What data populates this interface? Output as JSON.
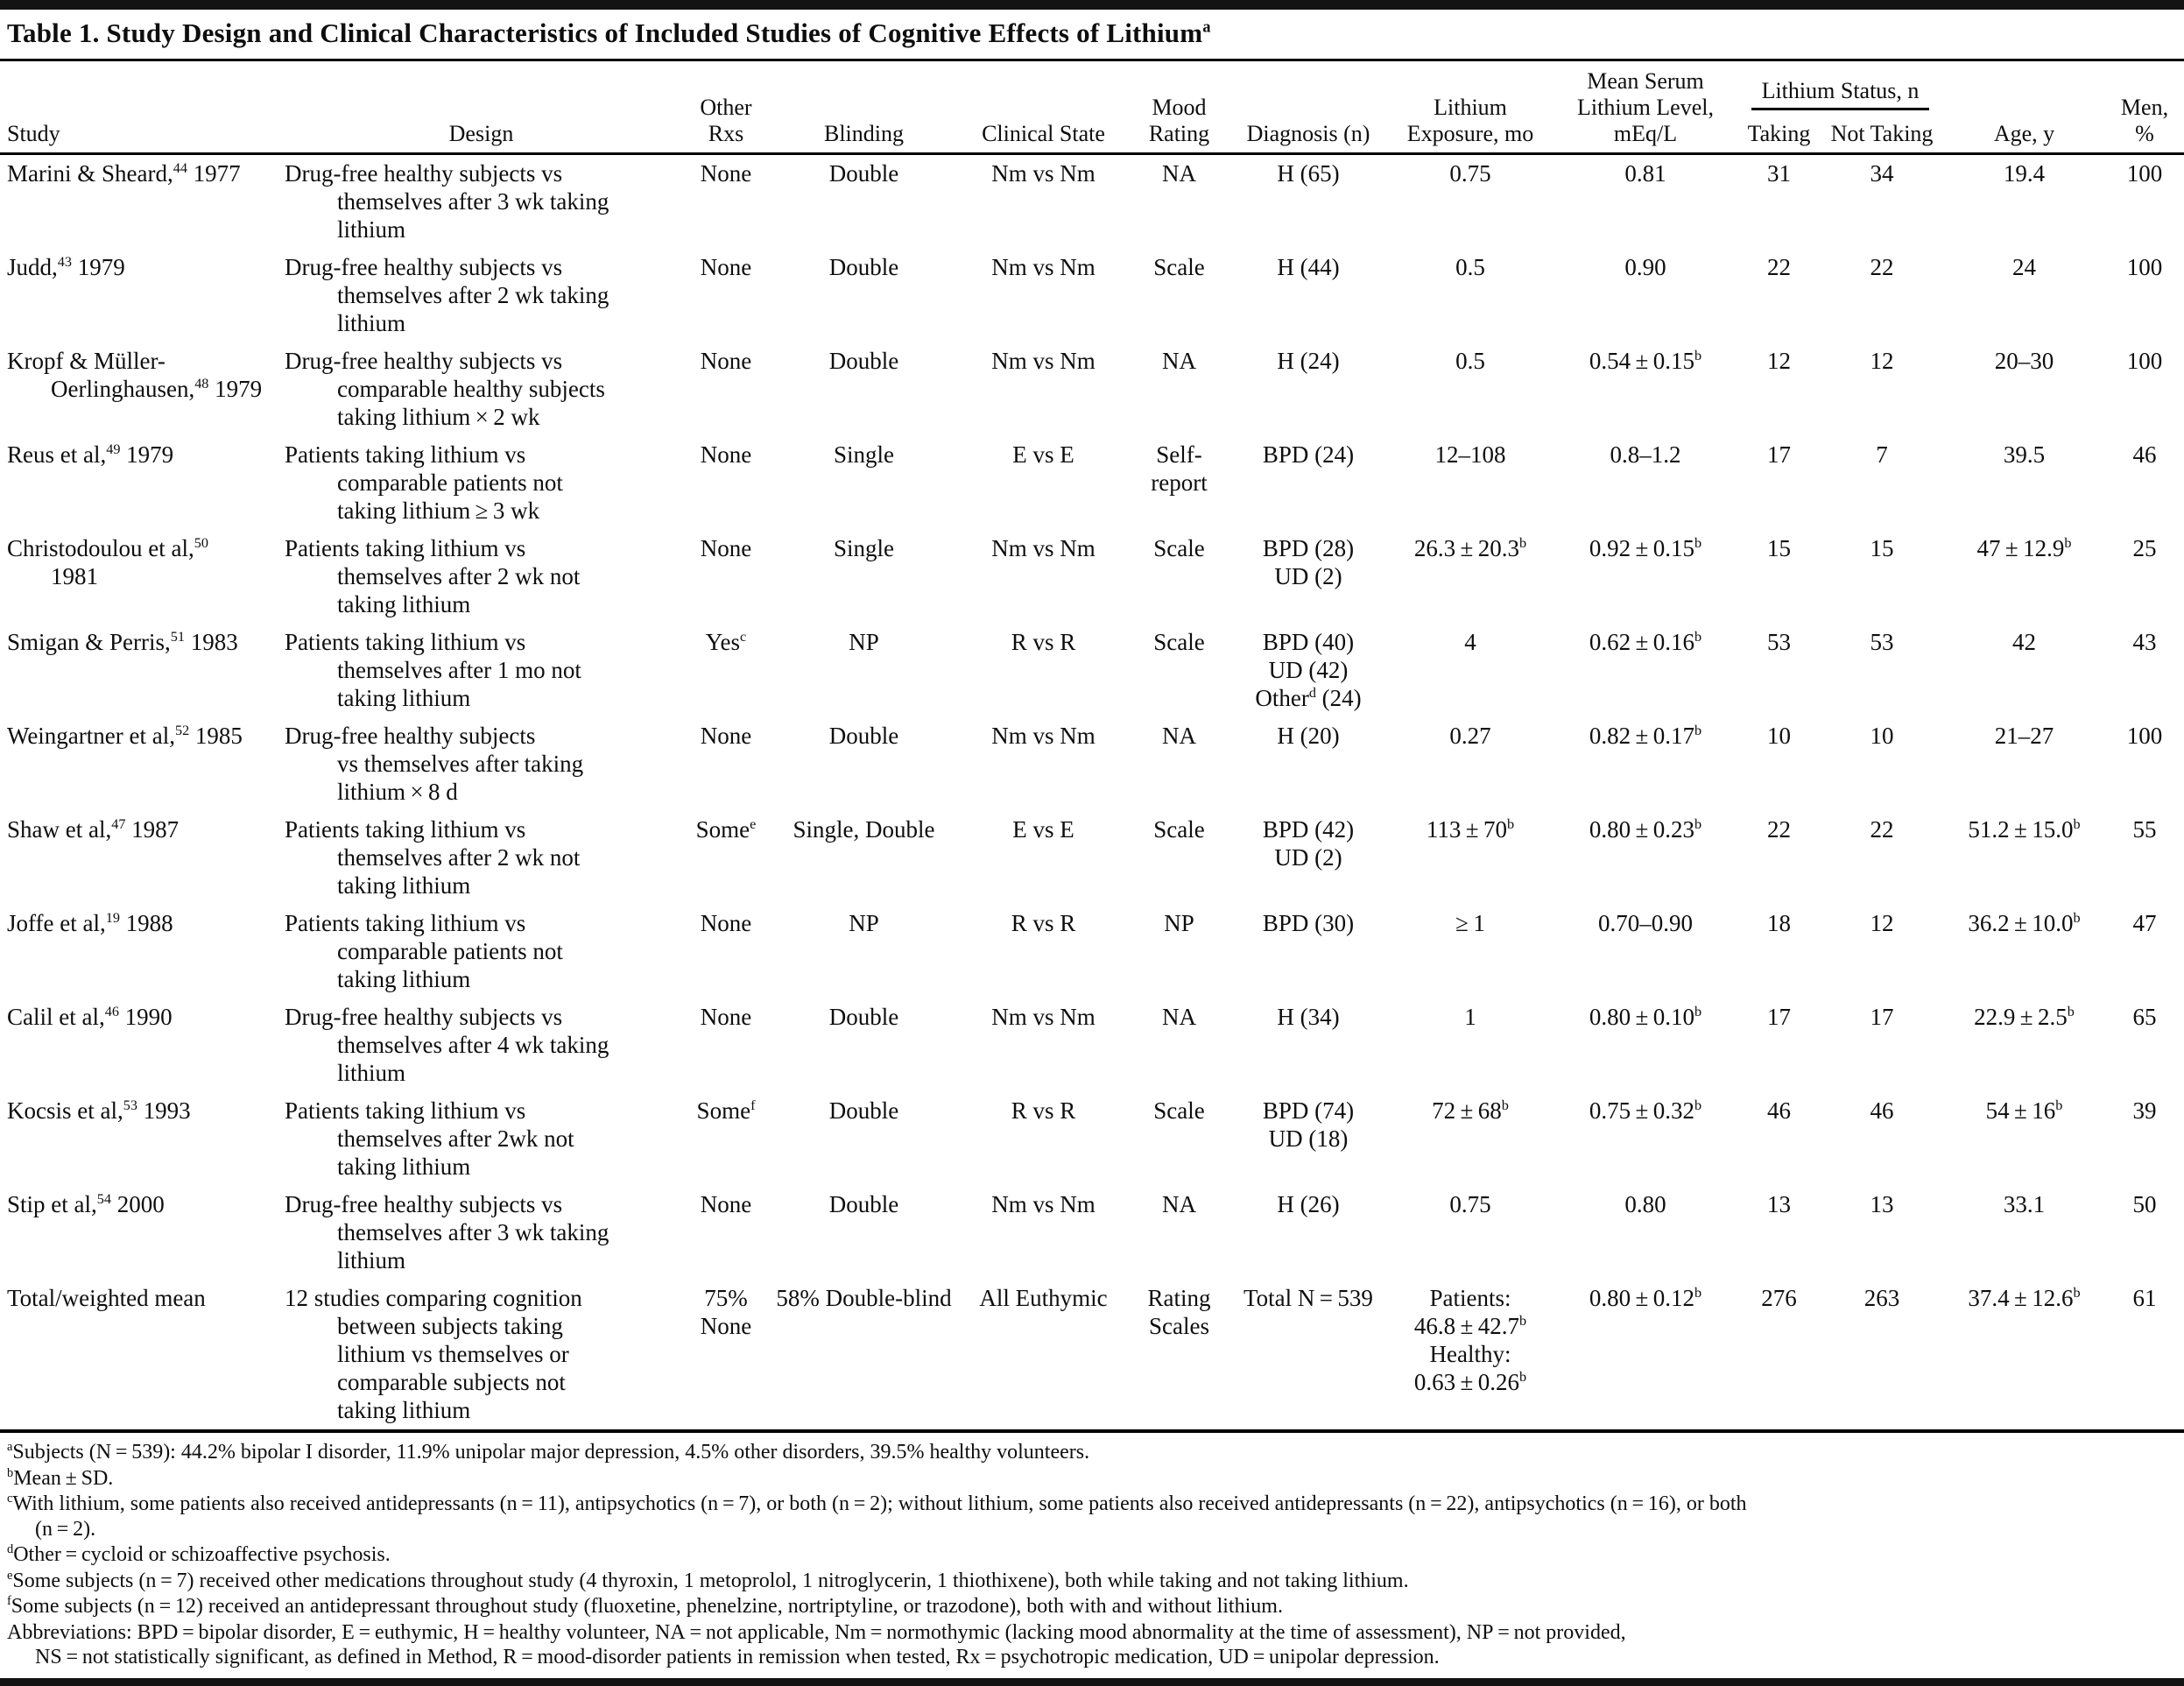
{
  "title": "Table 1. Study Design and Clinical Characteristics of Included Studies of Cognitive Effects of Lithium{a}",
  "columns": {
    "study": "Study",
    "design": "Design",
    "other_rxs": "Other\nRxs",
    "blinding": "Blinding",
    "clinical_state": "Clinical State",
    "mood_rating": "Mood\nRating",
    "diagnosis": "Diagnosis (n)",
    "lithium_exposure": "Lithium\nExposure, mo",
    "serum_level": "Mean Serum\nLithium Level,\nmEq/L",
    "lithium_status_group": "Lithium Status, n",
    "taking": "Taking",
    "not_taking": "Not Taking",
    "age": "Age, y",
    "men": "Men, %"
  },
  "rows": [
    {
      "study": "Marini & Sheard,{44} 1977",
      "design": "Drug-free healthy subjects vs\nthemselves after 3 wk taking\nlithium",
      "other_rxs": "None",
      "blinding": "Double",
      "clinical_state": "Nm vs Nm",
      "mood_rating": "NA",
      "diagnosis": "H (65)",
      "lithium_exposure": "0.75",
      "serum_level": "0.81",
      "taking": "31",
      "not_taking": "34",
      "age": "19.4",
      "men": "100"
    },
    {
      "study": "Judd,{43} 1979",
      "design": "Drug-free healthy subjects vs\nthemselves after 2 wk taking\nlithium",
      "other_rxs": "None",
      "blinding": "Double",
      "clinical_state": "Nm vs Nm",
      "mood_rating": "Scale",
      "diagnosis": "H (44)",
      "lithium_exposure": "0.5",
      "serum_level": "0.90",
      "taking": "22",
      "not_taking": "22",
      "age": "24",
      "men": "100"
    },
    {
      "study": "Kropf & Müller-\nOerlinghausen,{48} 1979",
      "design": "Drug-free healthy subjects vs\ncomparable healthy subjects\ntaking lithium × 2 wk",
      "other_rxs": "None",
      "blinding": "Double",
      "clinical_state": "Nm vs Nm",
      "mood_rating": "NA",
      "diagnosis": "H (24)",
      "lithium_exposure": "0.5",
      "serum_level": "0.54 ± 0.15{b}",
      "taking": "12",
      "not_taking": "12",
      "age": "20–30",
      "men": "100"
    },
    {
      "study": "Reus et al,{49} 1979",
      "design": "Patients taking lithium vs\ncomparable patients not\ntaking lithium ≥ 3 wk",
      "other_rxs": "None",
      "blinding": "Single",
      "clinical_state": "E vs E",
      "mood_rating": "Self-\nreport",
      "diagnosis": "BPD (24)",
      "lithium_exposure": "12–108",
      "serum_level": "0.8–1.2",
      "taking": "17",
      "not_taking": "7",
      "age": "39.5",
      "men": "46"
    },
    {
      "study": "Christodoulou et al,{50}\n1981",
      "design": "Patients taking lithium vs\nthemselves after 2 wk not\ntaking lithium",
      "other_rxs": "None",
      "blinding": "Single",
      "clinical_state": "Nm vs Nm",
      "mood_rating": "Scale",
      "diagnosis": "BPD (28)\nUD (2)",
      "lithium_exposure": "26.3 ± 20.3{b}",
      "serum_level": "0.92 ± 0.15{b}",
      "taking": "15",
      "not_taking": "15",
      "age": "47 ± 12.9{b}",
      "men": "25"
    },
    {
      "study": "Smigan & Perris,{51} 1983",
      "design": "Patients taking lithium vs\nthemselves after 1 mo not\ntaking lithium",
      "other_rxs": "Yes{c}",
      "blinding": "NP",
      "clinical_state": "R vs R",
      "mood_rating": "Scale",
      "diagnosis": "BPD (40)\nUD (42)\nOther{d} (24)",
      "lithium_exposure": "4",
      "serum_level": "0.62 ± 0.16{b}",
      "taking": "53",
      "not_taking": "53",
      "age": "42",
      "men": "43"
    },
    {
      "study": "Weingartner et al,{52} 1985",
      "design": "Drug-free healthy subjects\nvs themselves after taking\nlithium × 8 d",
      "other_rxs": "None",
      "blinding": "Double",
      "clinical_state": "Nm vs Nm",
      "mood_rating": "NA",
      "diagnosis": "H (20)",
      "lithium_exposure": "0.27",
      "serum_level": "0.82 ± 0.17{b}",
      "taking": "10",
      "not_taking": "10",
      "age": "21–27",
      "men": "100"
    },
    {
      "study": "Shaw et al,{47} 1987",
      "design": "Patients taking lithium vs\nthemselves after 2 wk not\ntaking lithium",
      "other_rxs": "Some{e}",
      "blinding": "Single, Double",
      "clinical_state": "E vs E",
      "mood_rating": "Scale",
      "diagnosis": "BPD (42)\nUD (2)",
      "lithium_exposure": "113 ± 70{b}",
      "serum_level": "0.80 ± 0.23{b}",
      "taking": "22",
      "not_taking": "22",
      "age": "51.2 ± 15.0{b}",
      "men": "55"
    },
    {
      "study": "Joffe et al,{19} 1988",
      "design": "Patients taking lithium vs\ncomparable patients not\ntaking lithium",
      "other_rxs": "None",
      "blinding": "NP",
      "clinical_state": "R vs R",
      "mood_rating": "NP",
      "diagnosis": "BPD (30)",
      "lithium_exposure": "≥ 1",
      "serum_level": "0.70–0.90",
      "taking": "18",
      "not_taking": "12",
      "age": "36.2 ± 10.0{b}",
      "men": "47"
    },
    {
      "study": "Calil et al,{46} 1990",
      "design": "Drug-free healthy subjects vs\nthemselves after 4 wk taking\nlithium",
      "other_rxs": "None",
      "blinding": "Double",
      "clinical_state": "Nm vs Nm",
      "mood_rating": "NA",
      "diagnosis": "H (34)",
      "lithium_exposure": "1",
      "serum_level": "0.80 ± 0.10{b}",
      "taking": "17",
      "not_taking": "17",
      "age": "22.9 ± 2.5{b}",
      "men": "65"
    },
    {
      "study": "Kocsis et al,{53} 1993",
      "design": "Patients taking lithium vs\nthemselves after 2wk not\ntaking lithium",
      "other_rxs": "Some{f}",
      "blinding": "Double",
      "clinical_state": "R vs R",
      "mood_rating": "Scale",
      "diagnosis": "BPD (74)\nUD (18)",
      "lithium_exposure": "72 ± 68{b}",
      "serum_level": "0.75 ± 0.32{b}",
      "taking": "46",
      "not_taking": "46",
      "age": "54 ± 16{b}",
      "men": "39"
    },
    {
      "study": "Stip et al,{54} 2000",
      "design": "Drug-free healthy subjects vs\nthemselves after 3 wk taking\nlithium",
      "other_rxs": "None",
      "blinding": "Double",
      "clinical_state": "Nm vs Nm",
      "mood_rating": "NA",
      "diagnosis": "H (26)",
      "lithium_exposure": "0.75",
      "serum_level": "0.80",
      "taking": "13",
      "not_taking": "13",
      "age": "33.1",
      "men": "50"
    },
    {
      "study": "Total/weighted mean",
      "design": "12 studies comparing cognition\nbetween subjects taking\nlithium vs themselves or\ncomparable subjects not\ntaking lithium",
      "other_rxs": "75%\nNone",
      "blinding": "58% Double-blind",
      "clinical_state": "All Euthymic",
      "mood_rating": "Rating\nScales",
      "diagnosis": "Total N = 539",
      "lithium_exposure": "Patients:\n46.8 ± 42.7{b}\nHealthy:\n0.63 ± 0.26{b}",
      "serum_level": "0.80 ± 0.12{b}",
      "taking": "276",
      "not_taking": "263",
      "age": "37.4 ± 12.6{b}",
      "men": "61"
    }
  ],
  "footnotes": [
    "{a}Subjects (N = 539): 44.2% bipolar I disorder, 11.9% unipolar major depression, 4.5% other disorders, 39.5% healthy volunteers.",
    "{b}Mean ± SD.",
    "{c}With lithium, some patients also received antidepressants (n = 11), antipsychotics (n = 7), or both (n = 2); without lithium, some patients also received antidepressants (n = 22), antipsychotics (n = 16), or both\n(n = 2).",
    "{d}Other = cycloid or schizoaffective psychosis.",
    "{e}Some subjects (n = 7) received other medications throughout study (4 thyroxin, 1 metoprolol, 1 nitroglycerin, 1 thiothixene), both while taking and not taking lithium.",
    "{f}Some subjects (n = 12) received an antidepressant throughout study (fluoxetine, phenelzine, nortriptyline, or trazodone), both with and without lithium.",
    "Abbreviations: BPD = bipolar disorder, E = euthymic, H = healthy volunteer, NA = not applicable, Nm = normothymic (lacking mood abnormality at the time of assessment), NP = not provided,\nNS = not statistically significant, as defined in Method, R = mood-disorder patients in remission when tested, Rx = psychotropic medication, UD = unipolar depression."
  ]
}
